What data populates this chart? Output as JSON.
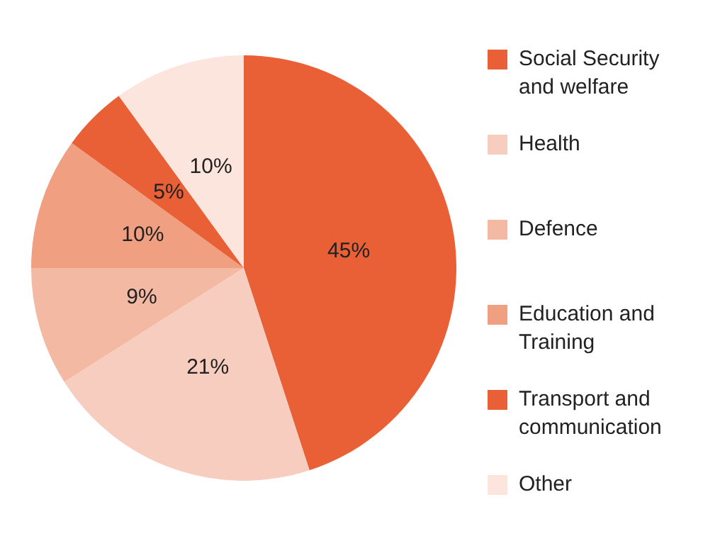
{
  "chart_data": {
    "type": "pie",
    "categories": [
      "Social Security and welfare",
      "Health",
      "Defence",
      "Education and Training",
      "Transport and communication",
      "Other"
    ],
    "values": [
      45,
      21,
      9,
      10,
      5,
      10
    ],
    "colors": [
      "#e95f36",
      "#f7cdbf",
      "#f4b9a3",
      "#f19f81",
      "#e95f36",
      "#fce5dd"
    ],
    "value_labels": [
      "45%",
      "21%",
      "9%",
      "10%",
      "5%",
      "10%"
    ],
    "legend": "right"
  }
}
